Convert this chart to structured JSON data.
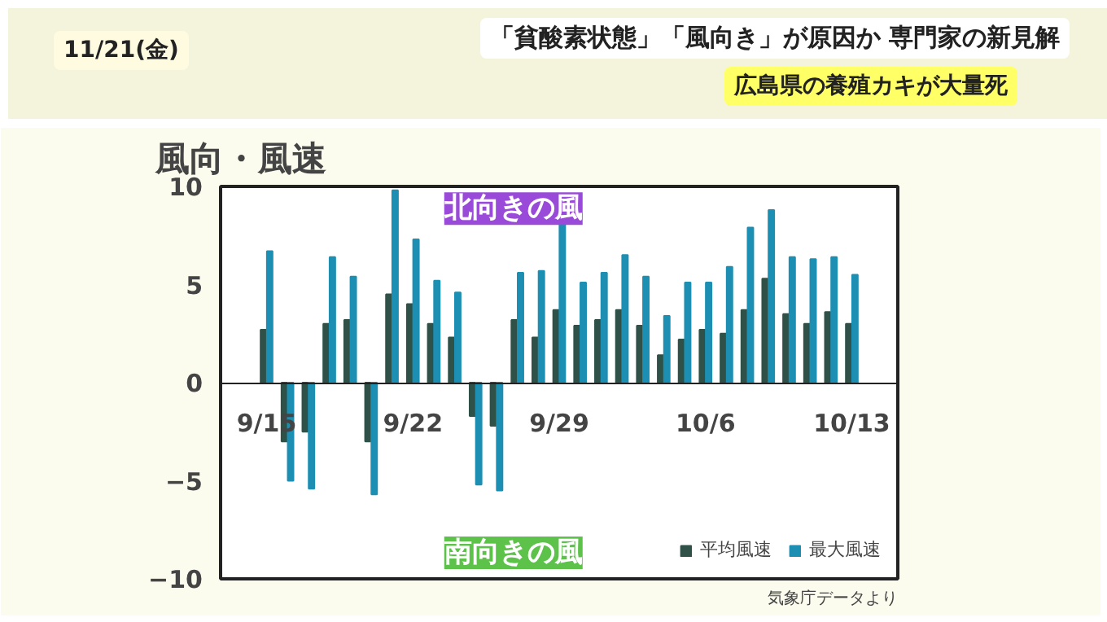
{
  "chart_data": {
    "type": "bar",
    "title": "風向・風速",
    "annotations": [
      "11/21(金)",
      "「貧酸素状態」「風向き」が原因か 専門家の新見解",
      "広島県の養殖カキが大量死",
      "北向きの風",
      "南向きの風",
      "気象庁データより"
    ],
    "categories": [
      "9/15",
      null,
      null,
      null,
      null,
      null,
      null,
      "9/22",
      null,
      null,
      null,
      null,
      null,
      null,
      "9/29",
      null,
      null,
      null,
      null,
      null,
      null,
      "10/6",
      null,
      null,
      null,
      null,
      null,
      null,
      "10/13"
    ],
    "series": [
      {
        "name": "平均風速",
        "color": "#2f5148",
        "values": [
          2.7,
          -3,
          -2.5,
          3,
          3.2,
          -3,
          4.5,
          4,
          3,
          2.3,
          -1.7,
          -2.2,
          3.2,
          2.3,
          3.7,
          2.9,
          3.2,
          3.7,
          2.9,
          1.4,
          2.2,
          2.7,
          2.5,
          3.7,
          5.3,
          3.5,
          3,
          3.6,
          3
        ]
      },
      {
        "name": "最大風速",
        "color": "#1c8fb3",
        "values": [
          6.7,
          -5,
          -5.4,
          6.4,
          5.4,
          -5.7,
          9.8,
          7.3,
          5.2,
          4.6,
          -5.2,
          -5.5,
          5.6,
          5.7,
          8.2,
          5.1,
          5.6,
          6.5,
          5.4,
          3.4,
          5.1,
          5.1,
          5.9,
          7.9,
          8.8,
          6.4,
          6.3,
          6.4,
          5.5
        ]
      }
    ],
    "ylim": [
      -10,
      10
    ],
    "yticks": [
      -10,
      -5,
      0,
      5,
      10
    ],
    "grid": false,
    "legend": "bottom right"
  }
}
